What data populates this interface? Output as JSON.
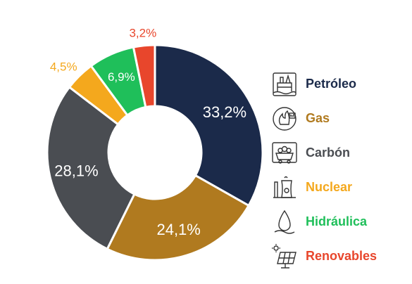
{
  "chart_data": {
    "type": "pie",
    "donut": true,
    "title": "",
    "categories": [
      "Petróleo",
      "Gas",
      "Carbón",
      "Nuclear",
      "Hidráulica",
      "Renovables"
    ],
    "values": [
      33.2,
      24.1,
      28.1,
      4.5,
      6.9,
      3.2
    ],
    "data_labels": [
      "33,2%",
      "24,1%",
      "28,1%",
      "4,5%",
      "6,9%",
      "3,2%"
    ],
    "colors": [
      "#1b2a4a",
      "#b07a1f",
      "#4a4d52",
      "#f4a81d",
      "#1fbf5a",
      "#e8462c"
    ],
    "legend_placement": "right"
  },
  "legend": {
    "items": [
      {
        "label": "Petróleo",
        "icon": "oil-platform-icon",
        "color": "#1b2a4a"
      },
      {
        "label": "Gas",
        "icon": "gas-flame-icon",
        "color": "#b07a1f"
      },
      {
        "label": "Carbón",
        "icon": "coal-cart-icon",
        "color": "#4a4d52"
      },
      {
        "label": "Nuclear",
        "icon": "nuclear-plant-icon",
        "color": "#f4a81d"
      },
      {
        "label": "Hidráulica",
        "icon": "water-drop-icon",
        "color": "#1fbf5a"
      },
      {
        "label": "Renovables",
        "icon": "solar-panel-icon",
        "color": "#e8462c"
      }
    ]
  }
}
